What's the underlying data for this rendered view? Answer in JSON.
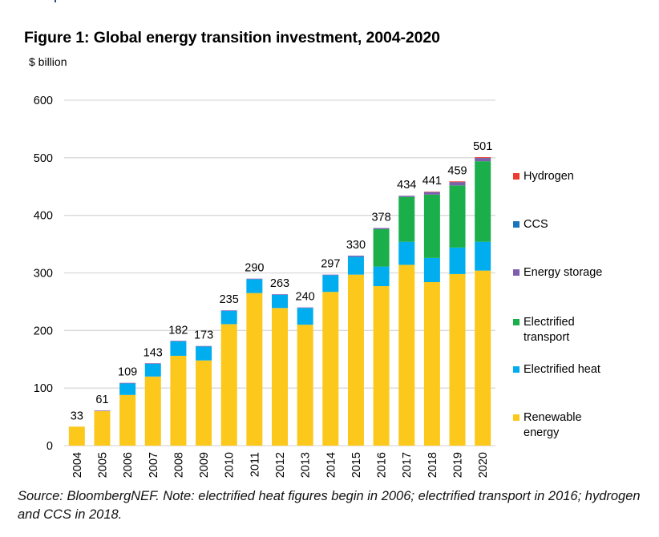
{
  "title": "Figure 1: Global energy transition investment, 2004-2020",
  "unit_label": "$ billion",
  "source_note": "Source: BloombergNEF. Note: electrified heat figures begin in 2006; electrified transport in 2016; hydrogen and CCS in 2018.",
  "chart_data": {
    "type": "bar",
    "stacked": true,
    "title": "Figure 1: Global energy transition investment, 2004-2020",
    "xlabel": "",
    "ylabel": "$ billion",
    "ylim": [
      0,
      600
    ],
    "yticks": [
      0,
      100,
      200,
      300,
      400,
      500,
      600
    ],
    "grid": true,
    "legend_position": "right",
    "categories": [
      "2004",
      "2005",
      "2006",
      "2007",
      "2008",
      "2009",
      "2010",
      "2011",
      "2012",
      "2013",
      "2014",
      "2015",
      "2016",
      "2017",
      "2018",
      "2019",
      "2020"
    ],
    "totals": [
      33,
      61,
      109,
      143,
      182,
      173,
      235,
      290,
      263,
      240,
      297,
      330,
      378,
      434,
      441,
      459,
      501
    ],
    "series": [
      {
        "name": "Renewable energy",
        "color": "#FCC81C",
        "values": [
          33,
          60,
          88,
          120,
          156,
          148,
          211,
          265,
          239,
          210,
          267,
          297,
          277,
          314,
          284,
          298,
          304
        ]
      },
      {
        "name": "Electrified heat",
        "color": "#00AEEF",
        "values": [
          0,
          0,
          20,
          22,
          25,
          24,
          23,
          24,
          23,
          29,
          29,
          31,
          34,
          40,
          42,
          46,
          50
        ]
      },
      {
        "name": "Electrified transport",
        "color": "#1AAF4B",
        "values": [
          0,
          0,
          0,
          0,
          0,
          0,
          0,
          0,
          0,
          0,
          0,
          0,
          65,
          78,
          110,
          108,
          140
        ]
      },
      {
        "name": "Energy storage",
        "color": "#7F5EB0",
        "values": [
          0,
          1,
          1,
          1,
          1,
          1,
          1,
          1,
          1,
          1,
          1,
          2,
          2,
          2,
          4,
          5,
          5
        ]
      },
      {
        "name": "CCS",
        "color": "#1C75BC",
        "values": [
          0,
          0,
          0,
          0,
          0,
          0,
          0,
          0,
          0,
          0,
          0,
          0,
          0,
          0,
          0.5,
          0.5,
          0.5
        ]
      },
      {
        "name": "Hydrogen",
        "color": "#EE3B2F",
        "values": [
          0,
          0,
          0,
          0,
          0,
          0,
          0,
          0,
          0,
          0,
          0,
          0,
          0,
          0,
          0.5,
          1.5,
          1.5
        ]
      }
    ],
    "legend": [
      {
        "name": "Hydrogen",
        "lines": [
          "Hydrogen"
        ],
        "color": "#EE3B2F"
      },
      {
        "name": "CCS",
        "lines": [
          "CCS"
        ],
        "color": "#1C75BC"
      },
      {
        "name": "Energy storage",
        "lines": [
          "Energy storage"
        ],
        "color": "#7F5EB0"
      },
      {
        "name": "Electrified transport",
        "lines": [
          "Electrified",
          "transport"
        ],
        "color": "#1AAF4B"
      },
      {
        "name": "Electrified heat",
        "lines": [
          "Electrified heat"
        ],
        "color": "#00AEEF"
      },
      {
        "name": "Renewable energy",
        "lines": [
          "Renewable",
          "energy"
        ],
        "color": "#FCC81C"
      }
    ]
  }
}
